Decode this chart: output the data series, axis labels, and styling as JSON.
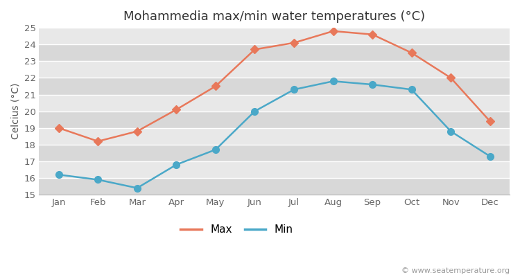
{
  "title": "Mohammedia max/min water temperatures (°C)",
  "ylabel": "Celcius (°C)",
  "months": [
    "Jan",
    "Feb",
    "Mar",
    "Apr",
    "May",
    "Jun",
    "Jul",
    "Aug",
    "Sep",
    "Oct",
    "Nov",
    "Dec"
  ],
  "max_values": [
    19.0,
    18.2,
    18.8,
    20.1,
    21.5,
    23.7,
    24.1,
    24.8,
    24.6,
    23.5,
    22.0,
    19.4
  ],
  "min_values": [
    16.2,
    15.9,
    15.4,
    16.8,
    17.7,
    20.0,
    21.3,
    21.8,
    21.6,
    21.3,
    18.8,
    17.3
  ],
  "max_color": "#e8785a",
  "min_color": "#4aa8c8",
  "figure_bg_color": "#ffffff",
  "plot_bg_color": "#e8e8e8",
  "band_color_light": "#f0f0f0",
  "band_color_dark": "#e0e0e0",
  "ylim": [
    15,
    25
  ],
  "yticks": [
    15,
    16,
    17,
    18,
    19,
    20,
    21,
    22,
    23,
    24,
    25
  ],
  "legend_labels": [
    "Max",
    "Min"
  ],
  "watermark": "© www.seatemperature.org",
  "title_fontsize": 13,
  "label_fontsize": 10,
  "tick_fontsize": 9.5,
  "legend_fontsize": 11,
  "max_marker": "D",
  "min_marker": "o",
  "linewidth": 1.8,
  "max_markersize": 6,
  "min_markersize": 7
}
